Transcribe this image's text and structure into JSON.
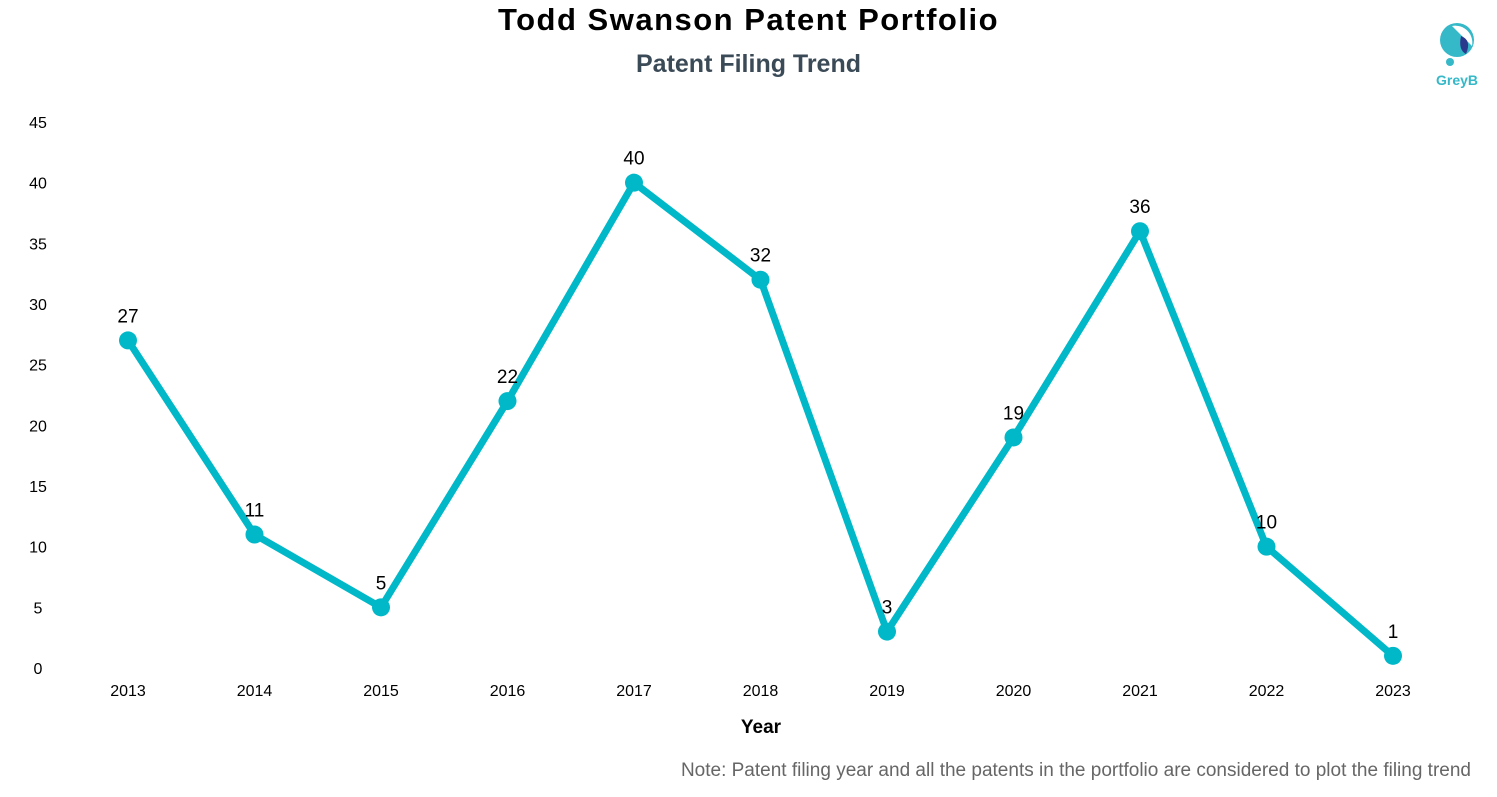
{
  "header": {
    "title": "Todd Swanson Patent Portfolio",
    "subtitle": "Patent Filing Trend"
  },
  "logo": {
    "text": "GreyB",
    "colors": [
      "#35b8c8",
      "#2b3a8c"
    ]
  },
  "note": "Note: Patent filing year and all the patents in the portfolio are considered to plot the filing trend",
  "chart_data": {
    "type": "line",
    "title": "Todd Swanson Patent Portfolio",
    "subtitle": "Patent Filing Trend",
    "xlabel": "Year",
    "ylabel": "",
    "x": [
      "2013",
      "2014",
      "2015",
      "2016",
      "2017",
      "2018",
      "2019",
      "2020",
      "2021",
      "2022",
      "2023"
    ],
    "series": [
      {
        "values": [
          27,
          11,
          5,
          22,
          40,
          32,
          3,
          19,
          36,
          10,
          1
        ],
        "color": "#00b8c8"
      }
    ],
    "ylim": [
      0,
      45
    ],
    "yticks": [
      0,
      5,
      10,
      15,
      20,
      25,
      30,
      35,
      40,
      45
    ],
    "grid": false,
    "legend": "none",
    "data_labels": true
  }
}
